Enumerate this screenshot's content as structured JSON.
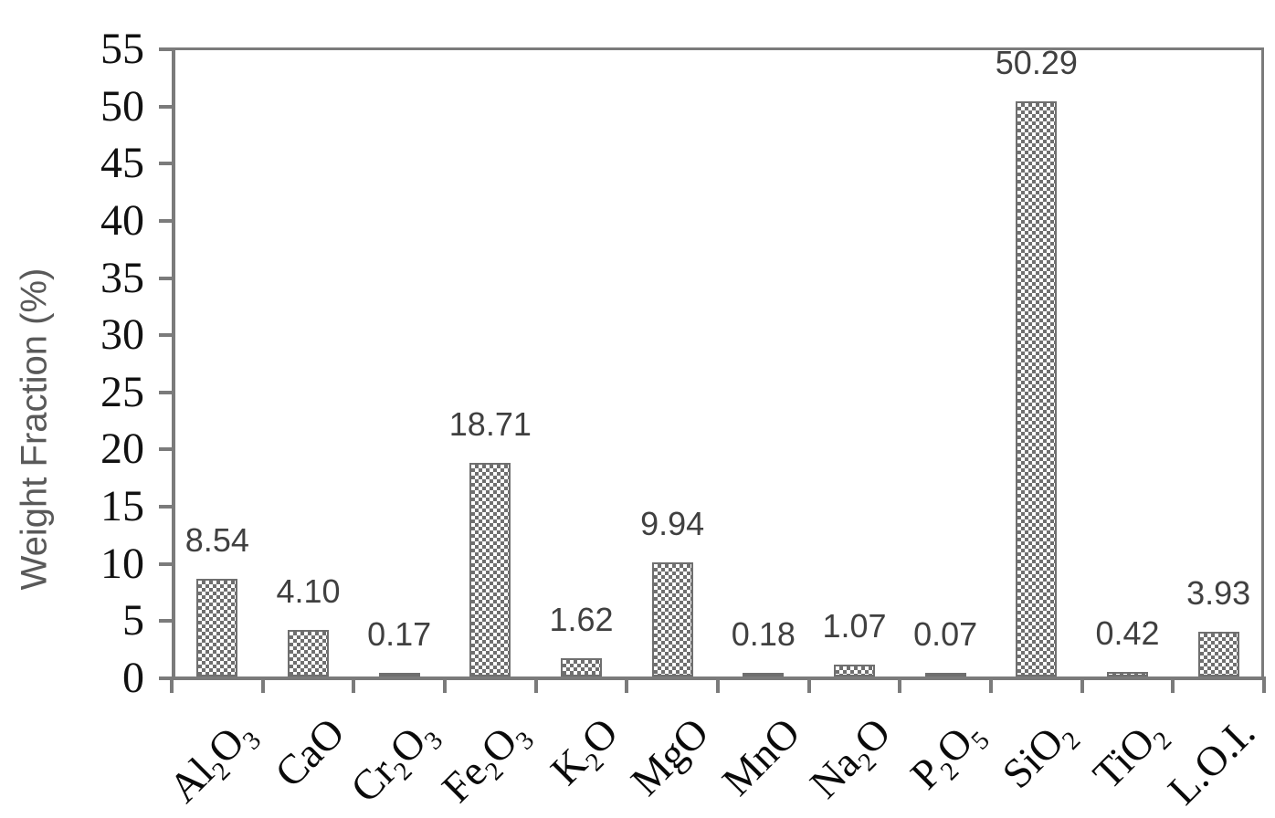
{
  "chart_data": {
    "type": "bar",
    "title": "",
    "xlabel": "",
    "ylabel": "Weight Fraction (%)",
    "categories": [
      "Al₂O₃",
      "CaO",
      "Cr₂O₃",
      "Fe₂O₃",
      "K₂O",
      "MgO",
      "MnO",
      "Na₂O",
      "P₂O₅",
      "SiO₂",
      "TiO₂",
      "L.O.I."
    ],
    "values": [
      8.54,
      4.1,
      0.17,
      18.71,
      1.62,
      9.94,
      0.18,
      1.07,
      0.07,
      50.29,
      0.42,
      3.93
    ],
    "value_labels": [
      "8.54",
      "4.10",
      "0.17",
      "18.71",
      "1.62",
      "9.94",
      "0.18",
      "1.07",
      "0.07",
      "50.29",
      "0.42",
      "3.93"
    ],
    "ylim": [
      0,
      55
    ],
    "ytick_step": 5,
    "grid": false,
    "legend": null,
    "bar_pattern": "checkerboard",
    "colors": {
      "axis": "#7b7b7b",
      "bar_fill": "#6f6f6f",
      "bar_border": "#6f6f6f",
      "data_label": "#404040",
      "tick_label": "#111111",
      "axis_title": "#595959",
      "background": "#ffffff"
    }
  }
}
